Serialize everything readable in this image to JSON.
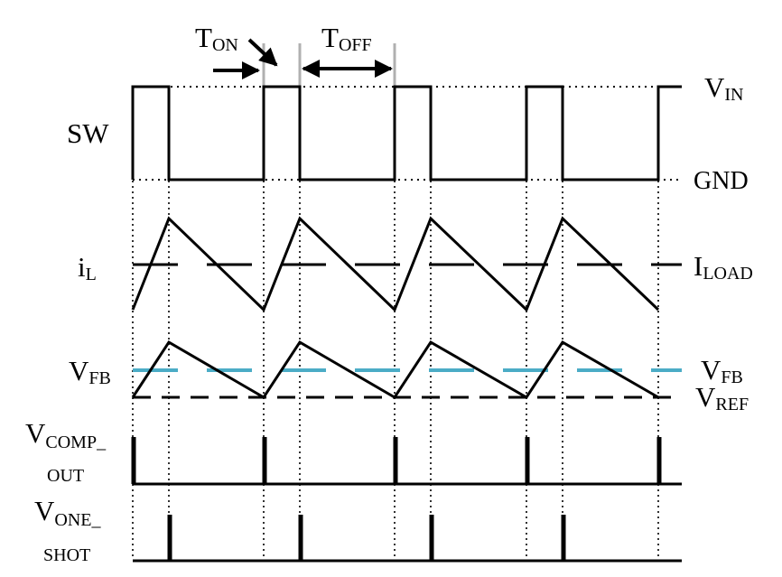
{
  "labels": {
    "t_on": {
      "main": "T",
      "sub": "ON"
    },
    "t_off": {
      "main": "T",
      "sub": "OFF"
    },
    "sw": "SW",
    "v_in": {
      "main": "V",
      "sub": "IN"
    },
    "gnd": "GND",
    "i_l": {
      "main": "i",
      "sub": "L"
    },
    "i_load": {
      "main": "I",
      "sub": "LOAD"
    },
    "v_fb_left": {
      "main": "V",
      "sub": "FB"
    },
    "v_fb_right": {
      "main": "V",
      "sub": "FB"
    },
    "v_ref": {
      "main": "V",
      "sub": "REF"
    },
    "v_comp_out": {
      "main": "V",
      "sub": "COMP_",
      "line2": "OUT"
    },
    "v_one_shot": {
      "main": "V",
      "sub": "ONE_",
      "line2": "SHOT"
    }
  },
  "colors": {
    "trace": "#000000",
    "fb_dashed": "#4bacc6",
    "guide": "#b0b0b0"
  }
}
